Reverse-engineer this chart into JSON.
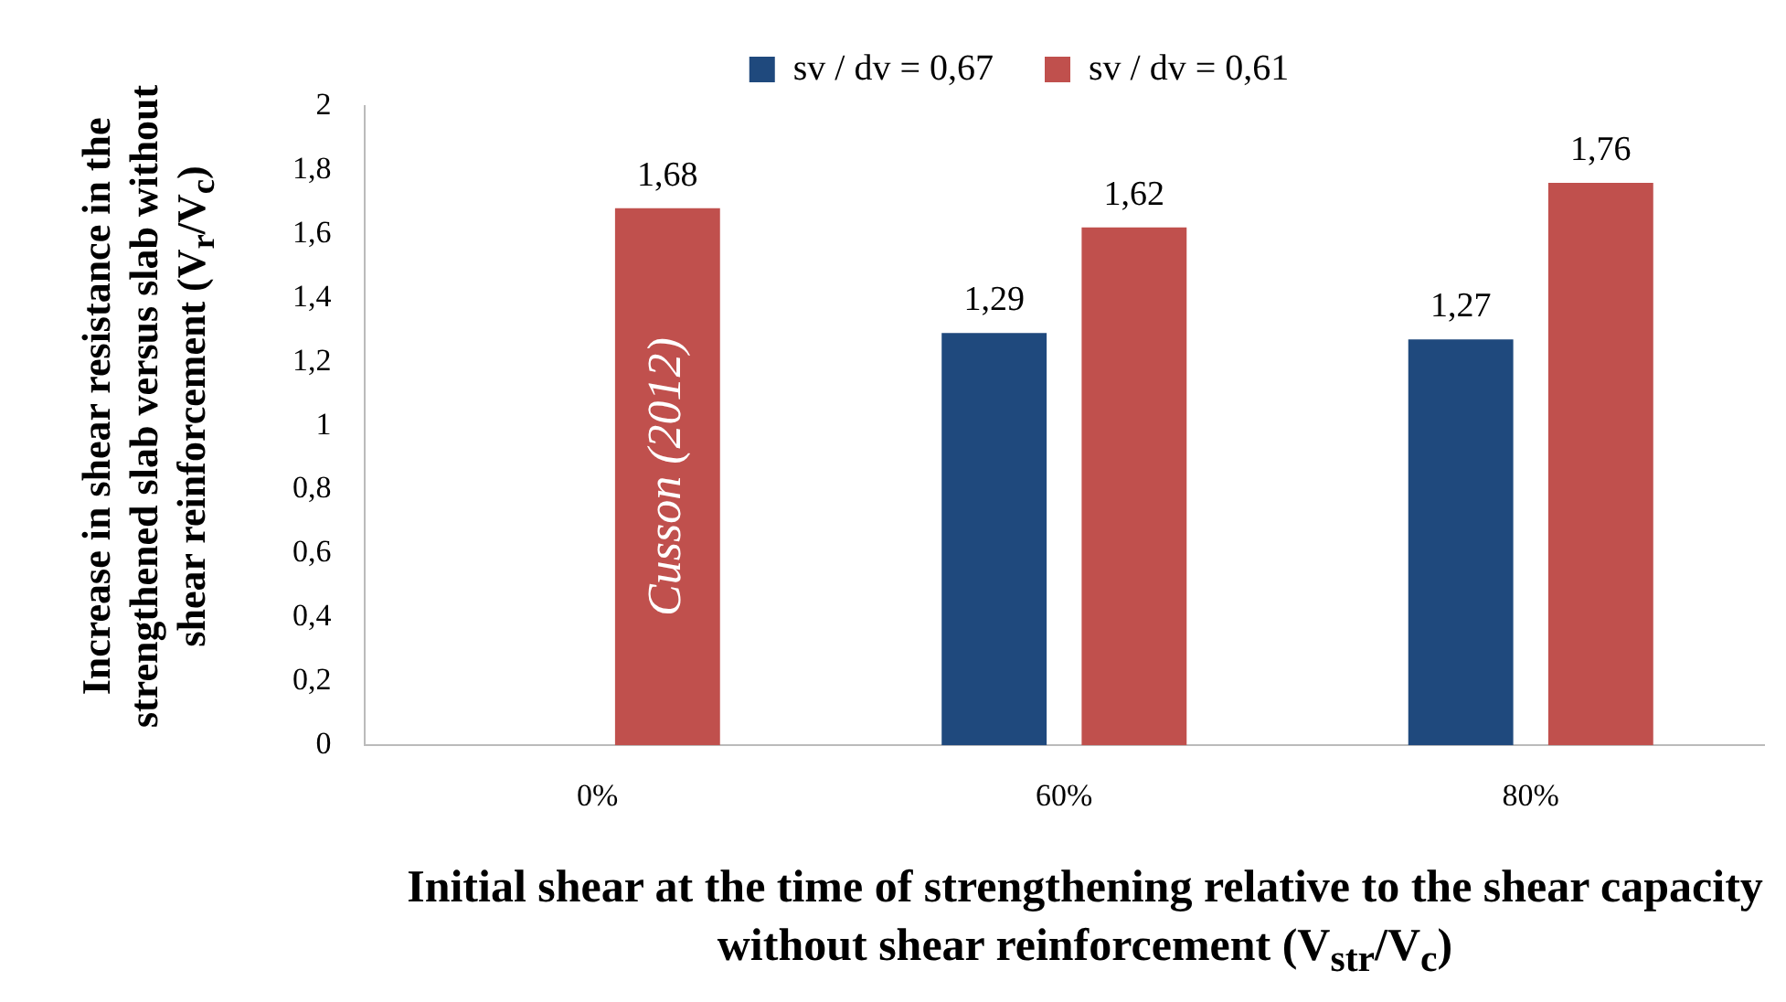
{
  "chart_data": {
    "type": "bar",
    "xlabel": "Initial shear at the time of strengthening relative to the shear capacity without shear reinforcement (V$_{str}$/V$_{c}$)",
    "ylabel": "Increase in shear resistance in the strengthened slab versus slab without shear reinforcement (V$_{r}$/V$_{c}$)",
    "categories": [
      "0%",
      "60%",
      "80%"
    ],
    "series": [
      {
        "name": "sv / dv = 0,67",
        "color": "#1f497d",
        "values": [
          null,
          1.29,
          1.27
        ],
        "value_labels": [
          null,
          "1,29",
          "1,27"
        ]
      },
      {
        "name": "sv / dv = 0,61",
        "color": "#c0504d",
        "values": [
          1.68,
          1.62,
          1.76
        ],
        "value_labels": [
          "1,68",
          "1,62",
          "1,76"
        ]
      }
    ],
    "ylim": [
      0,
      2
    ],
    "yticks": [
      0,
      {
        "value": 0.2,
        "label": "0,2"
      },
      {
        "value": 0.4,
        "label": "0,4"
      },
      {
        "value": 0.6,
        "label": "0,6"
      },
      {
        "value": 0.8,
        "label": "0,8"
      },
      1,
      {
        "value": 1.2,
        "label": "1,2"
      },
      {
        "value": 1.4,
        "label": "1,4"
      },
      {
        "value": 1.6,
        "label": "1,6"
      },
      {
        "value": 1.8,
        "label": "1,8"
      },
      2
    ],
    "grid": false,
    "legend": "top",
    "annotations": [
      "Cusson (2012)"
    ]
  }
}
